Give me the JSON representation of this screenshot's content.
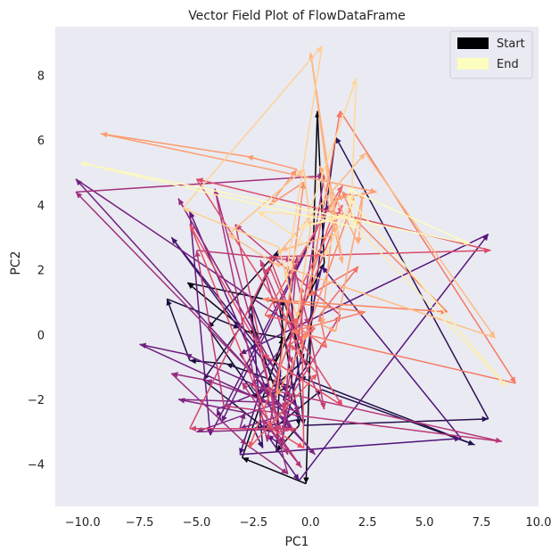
{
  "chart_data": {
    "type": "vector-field",
    "title": "Vector Field Plot of FlowDataFrame",
    "xlabel": "PC1",
    "ylabel": "PC2",
    "xlim": [
      -11.2,
      10.0
    ],
    "ylim": [
      -5.3,
      9.5
    ],
    "xticks": [
      -10.0,
      -7.5,
      -5.0,
      -2.5,
      0.0,
      2.5,
      5.0,
      7.5,
      10.0
    ],
    "yticks": [
      -4,
      -2,
      0,
      2,
      4,
      6,
      8
    ],
    "xtick_labels": [
      "−10.0",
      "−7.5",
      "−5.0",
      "−2.5",
      "0.0",
      "2.5",
      "5.0",
      "7.5",
      "10.0"
    ],
    "ytick_labels": [
      "−4",
      "−2",
      "0",
      "2",
      "4",
      "6",
      "8"
    ],
    "grid": false,
    "colormap": "magma",
    "legend": {
      "placement": "top-right",
      "entries": [
        {
          "label": "Start",
          "color": "#000004"
        },
        {
          "label": "End",
          "color": "#fcfdbf"
        }
      ]
    },
    "points": [
      [
        -1.7,
        -1.1
      ],
      [
        0.6,
        2.2
      ],
      [
        0.3,
        6.9
      ],
      [
        -0.2,
        -4.6
      ],
      [
        -3.0,
        -3.8
      ],
      [
        -1.2,
        -0.1
      ],
      [
        -2.8,
        0.1
      ],
      [
        -5.4,
        1.6
      ],
      [
        -1.4,
        1.0
      ],
      [
        -0.5,
        -2.8
      ],
      [
        -1.5,
        -3.6
      ],
      [
        -1.2,
        1.1
      ],
      [
        -0.3,
        -0.8
      ],
      [
        -1.6,
        -1.6
      ],
      [
        -2.7,
        0.7
      ],
      [
        -1.4,
        2.6
      ],
      [
        -4.5,
        0.2
      ],
      [
        -2.3,
        -2.0
      ],
      [
        -0.9,
        -1.6
      ],
      [
        -3.7,
        -0.9
      ],
      [
        -5.3,
        -0.8
      ],
      [
        -6.3,
        1.1
      ],
      [
        -3.1,
        0.2
      ],
      [
        -4.7,
        -1.4
      ],
      [
        -1.8,
        -3.0
      ],
      [
        0.5,
        -1.7
      ],
      [
        7.2,
        -3.4
      ],
      [
        -0.5,
        -1.3
      ],
      [
        -1.0,
        2.1
      ],
      [
        -0.3,
        -2.8
      ],
      [
        7.8,
        -2.6
      ],
      [
        1.1,
        6.1
      ],
      [
        0.4,
        2.4
      ],
      [
        -0.2,
        -1.0
      ],
      [
        -1.2,
        -2.0
      ],
      [
        -0.4,
        -2.6
      ],
      [
        -2.5,
        -2.9
      ],
      [
        -2.1,
        -3.5
      ],
      [
        -2.6,
        1.0
      ],
      [
        -1.3,
        -1.3
      ],
      [
        -6.1,
        3.0
      ],
      [
        -2.4,
        -0.5
      ],
      [
        -0.6,
        -2.2
      ],
      [
        -2.1,
        -1.5
      ],
      [
        -3.1,
        -3.7
      ],
      [
        6.6,
        -3.2
      ],
      [
        0.5,
        2.1
      ],
      [
        -1.3,
        -3.4
      ],
      [
        -1.9,
        -3.1
      ],
      [
        -0.5,
        -4.5
      ],
      [
        7.8,
        3.1
      ],
      [
        -3.1,
        -0.6
      ],
      [
        -1.8,
        -1.9
      ],
      [
        -5.3,
        3.8
      ],
      [
        -4.4,
        -3.1
      ],
      [
        0.8,
        4.0
      ],
      [
        -3.9,
        -2.7
      ],
      [
        -4.1,
        -2.3
      ],
      [
        -2.0,
        -1.7
      ],
      [
        -5.5,
        -0.6
      ],
      [
        -7.5,
        -0.3
      ],
      [
        -1.0,
        -2.4
      ],
      [
        -10.3,
        4.8
      ],
      [
        -0.6,
        0.2
      ],
      [
        -2.6,
        -1.6
      ],
      [
        0.2,
        -3.7
      ],
      [
        -1.3,
        -2.5
      ],
      [
        -3.1,
        -2.9
      ],
      [
        -2.9,
        -2.4
      ],
      [
        -5.8,
        -2.0
      ],
      [
        -1.4,
        -2.1
      ],
      [
        -5.0,
        -3.0
      ],
      [
        -0.8,
        -2.9
      ],
      [
        -1.7,
        -1.8
      ],
      [
        -1.3,
        -1.4
      ],
      [
        -5.8,
        4.2
      ],
      [
        -0.5,
        -2.4
      ],
      [
        -4.6,
        -1.4
      ],
      [
        -6.1,
        -1.2
      ],
      [
        -2.8,
        -3.4
      ],
      [
        -1.0,
        -4.3
      ],
      [
        -2.0,
        -1.6
      ],
      [
        -10.3,
        4.4
      ],
      [
        0.6,
        4.9
      ],
      [
        -1.2,
        -3.0
      ],
      [
        -0.6,
        2.4
      ],
      [
        -1.9,
        -3.3
      ],
      [
        -4.2,
        4.5
      ],
      [
        -1.0,
        -3.7
      ],
      [
        -2.1,
        -2.6
      ],
      [
        -0.4,
        -4.1
      ],
      [
        -3.0,
        -1.5
      ],
      [
        8.4,
        -3.3
      ],
      [
        -3.8,
        -2.2
      ],
      [
        -5.0,
        2.6
      ],
      [
        -0.8,
        2.3
      ],
      [
        -0.1,
        0.3
      ],
      [
        0.6,
        -2.3
      ],
      [
        -2.2,
        2.3
      ],
      [
        -0.8,
        -0.9
      ],
      [
        -1.2,
        -2.3
      ],
      [
        1.3,
        0.6
      ],
      [
        -3.3,
        3.4
      ],
      [
        -1.4,
        -3.0
      ],
      [
        -0.6,
        -2.9
      ],
      [
        -5.3,
        -2.9
      ],
      [
        -1.8,
        2.1
      ],
      [
        -0.3,
        -0.4
      ],
      [
        -1.8,
        2.4
      ],
      [
        7.9,
        2.6
      ],
      [
        -5.0,
        4.8
      ],
      [
        1.4,
        -2.2
      ],
      [
        -2.1,
        -0.6
      ],
      [
        -5.3,
        3.4
      ],
      [
        -1.7,
        -2.9
      ],
      [
        -0.3,
        -3.5
      ],
      [
        -0.4,
        1.5
      ],
      [
        1.4,
        4.0
      ],
      [
        -2.7,
        -3.5
      ],
      [
        0.3,
        -1.2
      ],
      [
        -0.9,
        -0.3
      ],
      [
        0.2,
        0.2
      ],
      [
        -2.0,
        0.6
      ],
      [
        1.4,
        4.6
      ],
      [
        -0.7,
        0.3
      ],
      [
        0.7,
        -0.4
      ],
      [
        0.4,
        0.6
      ],
      [
        2.1,
        2.1
      ],
      [
        -0.1,
        1.2
      ],
      [
        1.3,
        6.9
      ],
      [
        9.0,
        -1.5
      ],
      [
        -0.8,
        0.1
      ],
      [
        2.4,
        0.7
      ],
      [
        -2.1,
        1.1
      ],
      [
        6.0,
        0.7
      ],
      [
        1.9,
        3.6
      ],
      [
        1.4,
        4.4
      ],
      [
        1.9,
        4.2
      ],
      [
        -0.3,
        -0.2
      ],
      [
        -1.5,
        -1.9
      ],
      [
        -0.3,
        4.7
      ],
      [
        -1.8,
        4.0
      ],
      [
        -0.6,
        5.1
      ],
      [
        -2.8,
        5.5
      ],
      [
        -9.2,
        6.2
      ],
      [
        2.9,
        4.4
      ],
      [
        1.1,
        4.2
      ],
      [
        0.5,
        0.3
      ],
      [
        1.1,
        0.1
      ],
      [
        2.3,
        4.4
      ],
      [
        2.1,
        2.8
      ],
      [
        0.4,
        5.2
      ],
      [
        1.4,
        2.2
      ],
      [
        0.0,
        8.7
      ],
      [
        1.1,
        3.1
      ],
      [
        -1.3,
        2.6
      ],
      [
        2.4,
        5.6
      ],
      [
        8.1,
        -0.1
      ],
      [
        -1.6,
        2.2
      ],
      [
        -3.6,
        3.1
      ],
      [
        -0.3,
        5.1
      ],
      [
        0.0,
        3.3
      ],
      [
        -0.6,
        0.5
      ],
      [
        -1.4,
        2.7
      ],
      [
        -5.6,
        3.9
      ],
      [
        0.5,
        8.9
      ],
      [
        -1.1,
        1.7
      ],
      [
        2.0,
        7.9
      ],
      [
        1.8,
        4.1
      ],
      [
        0.6,
        2.4
      ],
      [
        -2.3,
        3.8
      ],
      [
        1.2,
        3.6
      ],
      [
        1.9,
        3.7
      ],
      [
        -0.5,
        3.3
      ],
      [
        1.5,
        3.7
      ],
      [
        8.6,
        -1.6
      ],
      [
        1.7,
        4.2
      ],
      [
        1.7,
        4.1
      ],
      [
        2.0,
        3.3
      ],
      [
        -10.1,
        5.3
      ],
      [
        7.0,
        2.8
      ],
      [
        1.6,
        4.5
      ]
    ]
  }
}
